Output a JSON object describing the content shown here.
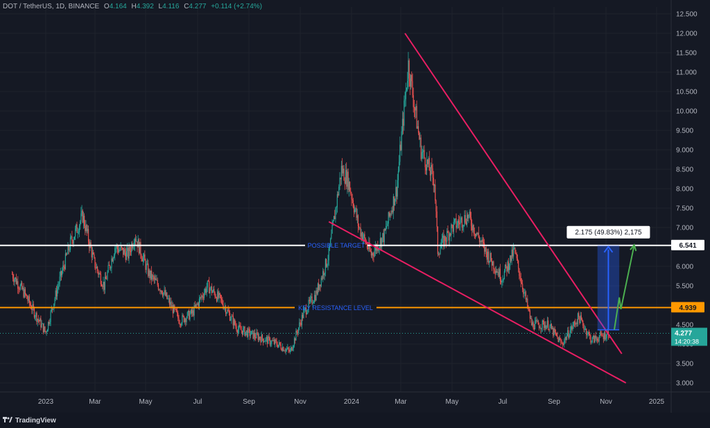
{
  "header": {
    "symbol": "DOT / TetherUS, 1D, BINANCE",
    "o_label": "O",
    "o": "4.164",
    "h_label": "H",
    "h": "4.392",
    "l_label": "L",
    "l": "4.116",
    "c_label": "C",
    "c": "4.277",
    "change": "+0.114 (+2.74%)"
  },
  "footer": {
    "brand": "TradingView"
  },
  "colors": {
    "background": "#151924",
    "grid": "#1e222d",
    "axis_text": "#b2b5be",
    "up": "#26a69a",
    "down": "#ef5350",
    "trendline": "#e91e63",
    "resistance": "#ff9800",
    "target": "#ffffff",
    "measure": "#2962ff",
    "arrow_green": "#4caf50"
  },
  "chart_data": {
    "type": "candlestick",
    "symbol": "DOT / TetherUS",
    "interval": "1D",
    "exchange": "BINANCE",
    "x_ticks": [
      "2023",
      "Mar",
      "May",
      "Jul",
      "Sep",
      "Nov",
      "2024",
      "Mar",
      "May",
      "Jul",
      "Sep",
      "Nov",
      "2025"
    ],
    "y_ticks": [
      "12.500",
      "12.000",
      "11.500",
      "11.000",
      "10.500",
      "10.000",
      "9.500",
      "9.000",
      "8.500",
      "8.000",
      "7.500",
      "7.000",
      "6.500",
      "6.000",
      "5.500",
      "5.000",
      "4.500",
      "4.000",
      "3.500",
      "3.000"
    ],
    "ylim": [
      2.8,
      12.6
    ],
    "price_path": [
      {
        "date": "2022-11-20",
        "price": 5.8
      },
      {
        "date": "2022-12-05",
        "price": 5.3
      },
      {
        "date": "2022-12-20",
        "price": 4.7
      },
      {
        "date": "2022-12-31",
        "price": 4.3
      },
      {
        "date": "2023-01-15",
        "price": 5.5
      },
      {
        "date": "2023-01-30",
        "price": 6.6
      },
      {
        "date": "2023-02-14",
        "price": 7.3
      },
      {
        "date": "2023-02-28",
        "price": 6.1
      },
      {
        "date": "2023-03-12",
        "price": 5.5
      },
      {
        "date": "2023-03-25",
        "price": 6.5
      },
      {
        "date": "2023-04-10",
        "price": 6.3
      },
      {
        "date": "2023-04-18",
        "price": 6.8
      },
      {
        "date": "2023-05-05",
        "price": 5.8
      },
      {
        "date": "2023-05-20",
        "price": 5.4
      },
      {
        "date": "2023-06-10",
        "price": 4.6
      },
      {
        "date": "2023-06-25",
        "price": 4.8
      },
      {
        "date": "2023-07-13",
        "price": 5.5
      },
      {
        "date": "2023-07-30",
        "price": 5.1
      },
      {
        "date": "2023-08-18",
        "price": 4.4
      },
      {
        "date": "2023-09-10",
        "price": 4.2
      },
      {
        "date": "2023-10-05",
        "price": 4.0
      },
      {
        "date": "2023-10-20",
        "price": 3.8
      },
      {
        "date": "2023-11-05",
        "price": 4.8
      },
      {
        "date": "2023-11-20",
        "price": 5.3
      },
      {
        "date": "2023-12-05",
        "price": 6.3
      },
      {
        "date": "2023-12-20",
        "price": 8.5
      },
      {
        "date": "2023-12-28",
        "price": 8.2
      },
      {
        "date": "2024-01-10",
        "price": 7.0
      },
      {
        "date": "2024-01-25",
        "price": 6.3
      },
      {
        "date": "2024-02-10",
        "price": 6.8
      },
      {
        "date": "2024-02-25",
        "price": 8.0
      },
      {
        "date": "2024-03-10",
        "price": 11.2
      },
      {
        "date": "2024-03-25",
        "price": 9.0
      },
      {
        "date": "2024-04-10",
        "price": 8.2
      },
      {
        "date": "2024-04-14",
        "price": 6.4
      },
      {
        "date": "2024-05-01",
        "price": 7.0
      },
      {
        "date": "2024-05-20",
        "price": 7.3
      },
      {
        "date": "2024-06-10",
        "price": 6.4
      },
      {
        "date": "2024-06-30",
        "price": 5.7
      },
      {
        "date": "2024-07-15",
        "price": 6.4
      },
      {
        "date": "2024-08-05",
        "price": 4.5
      },
      {
        "date": "2024-08-25",
        "price": 4.5
      },
      {
        "date": "2024-09-10",
        "price": 4.0
      },
      {
        "date": "2024-09-30",
        "price": 4.7
      },
      {
        "date": "2024-10-15",
        "price": 4.1
      },
      {
        "date": "2024-11-05",
        "price": 4.28
      }
    ],
    "last_price": 4.277,
    "countdown": "14:20:38",
    "levels": [
      {
        "name": "POSSIBLE TARGET",
        "price": 6.541,
        "label": "6.541",
        "color": "#ffffff"
      },
      {
        "name": "KEY RESISTANCE LEVEL",
        "price": 4.939,
        "label": "4.939",
        "color": "#ff9800"
      }
    ],
    "trendlines": [
      {
        "from": {
          "date": "2024-03-06",
          "price": 12.0
        },
        "to": {
          "date": "2024-11-20",
          "price": 3.75
        }
      },
      {
        "from": {
          "date": "2023-12-05",
          "price": 7.15
        },
        "to": {
          "date": "2024-11-25",
          "price": 3.0
        }
      }
    ],
    "measure": {
      "label": "2.175 (49.83%) 2,175",
      "from_price": 4.366,
      "to_price": 6.541,
      "start_date": "2024-10-22",
      "end_date": "2024-11-17"
    },
    "projection": [
      {
        "date": "2024-11-11",
        "price": 4.37
      },
      {
        "date": "2024-11-17",
        "price": 5.2
      },
      {
        "date": "2024-11-19",
        "price": 4.9
      },
      {
        "date": "2024-12-05",
        "price": 6.55
      }
    ]
  }
}
